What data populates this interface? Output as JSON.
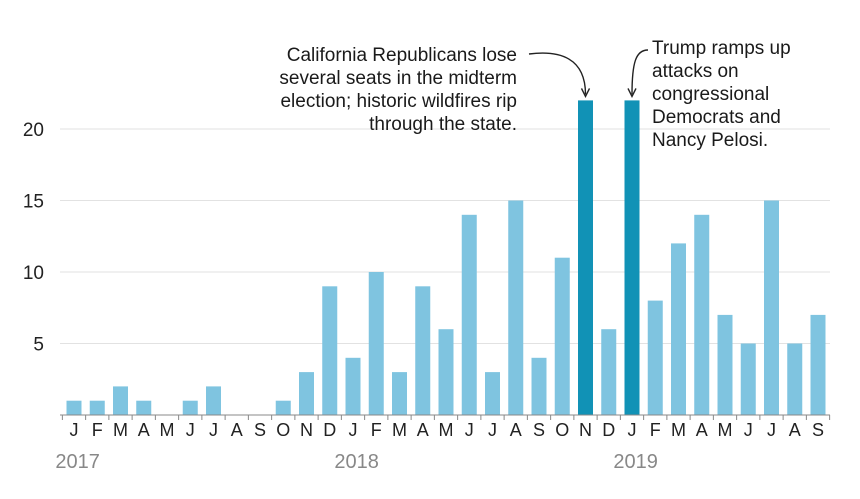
{
  "chart_data": {
    "type": "bar",
    "categories": [
      "J",
      "F",
      "M",
      "A",
      "M",
      "J",
      "J",
      "A",
      "S",
      "O",
      "N",
      "D",
      "J",
      "F",
      "M",
      "A",
      "M",
      "J",
      "J",
      "A",
      "S",
      "O",
      "N",
      "D",
      "J",
      "F",
      "M",
      "A",
      "M",
      "J",
      "J",
      "A",
      "S"
    ],
    "years": [
      {
        "label": "2017",
        "start_index": 0
      },
      {
        "label": "2018",
        "start_index": 12
      },
      {
        "label": "2019",
        "start_index": 24
      }
    ],
    "values": [
      1,
      1,
      2,
      1,
      0,
      1,
      2,
      0,
      0,
      1,
      3,
      9,
      4,
      10,
      3,
      9,
      6,
      14,
      3,
      15,
      4,
      11,
      22,
      6,
      22,
      8,
      12,
      14,
      7,
      5,
      15,
      5,
      7
    ],
    "highlight_indices": [
      22,
      24
    ],
    "yticks": [
      5,
      10,
      15,
      20
    ],
    "ylim": [
      0,
      25
    ],
    "title": "",
    "xlabel": "",
    "ylabel": "",
    "grid": true,
    "colors": {
      "bar": "#7fc4e0",
      "highlight": "#1192b6",
      "grid": "#e2e2e2",
      "axis": "#888888"
    },
    "annotations": [
      {
        "target_index": 22,
        "lines": [
          "California Republicans lose",
          "several seats in the midterm",
          "election; historic wildfires rip",
          "through the state."
        ]
      },
      {
        "target_index": 24,
        "lines": [
          "Trump ramps up",
          "attacks on",
          "congressional",
          "Democrats and",
          "Nancy Pelosi."
        ]
      }
    ]
  }
}
